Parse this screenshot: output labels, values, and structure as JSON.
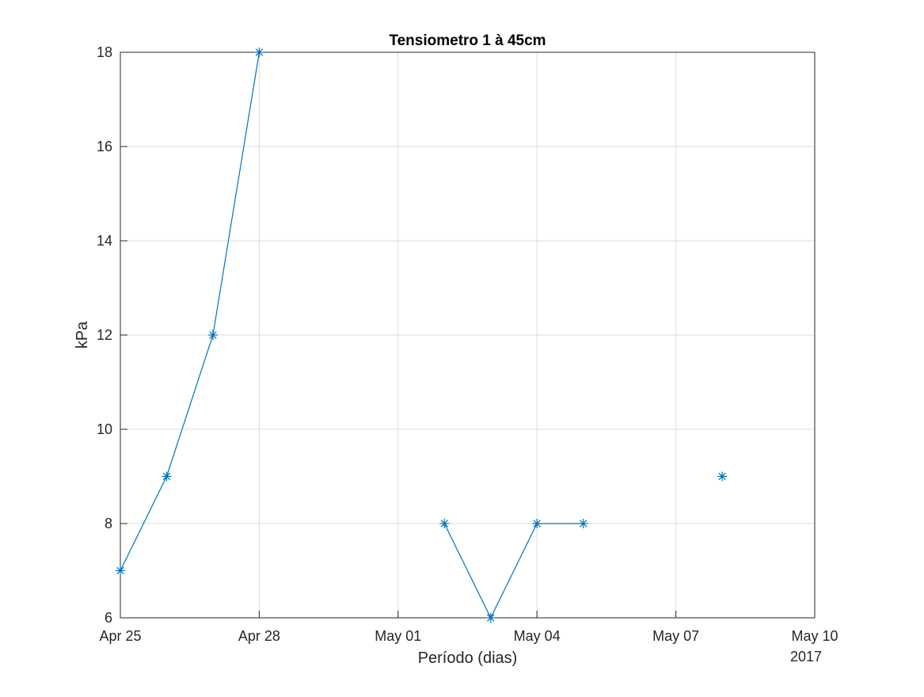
{
  "chart_data": {
    "type": "line",
    "title": "Tensiometro 1 à 45cm",
    "xlabel": "Período (dias)",
    "ylabel": "kPa",
    "x_year_label": "2017",
    "xlim": [
      "2017-04-25",
      "2017-05-10"
    ],
    "ylim": [
      6,
      18
    ],
    "xticks": [
      {
        "date": "2017-04-25",
        "label": "Apr 25"
      },
      {
        "date": "2017-04-28",
        "label": "Apr 28"
      },
      {
        "date": "2017-05-01",
        "label": "May 01"
      },
      {
        "date": "2017-05-04",
        "label": "May 04"
      },
      {
        "date": "2017-05-07",
        "label": "May 07"
      },
      {
        "date": "2017-05-10",
        "label": "May 10"
      }
    ],
    "yticks": [
      6,
      8,
      10,
      12,
      14,
      16,
      18
    ],
    "grid": true,
    "marker": "asterisk",
    "series": [
      {
        "color": "#0072bd",
        "x": [
          "2017-04-25",
          "2017-04-26",
          "2017-04-27",
          "2017-04-28",
          "2017-04-29",
          "2017-04-30",
          "2017-05-01",
          "2017-05-02",
          "2017-05-03",
          "2017-05-04",
          "2017-05-05",
          "2017-05-06",
          "2017-05-07",
          "2017-05-08"
        ],
        "y": [
          7,
          9,
          12,
          18,
          null,
          null,
          null,
          8,
          6,
          8,
          8,
          null,
          null,
          9
        ]
      }
    ]
  }
}
